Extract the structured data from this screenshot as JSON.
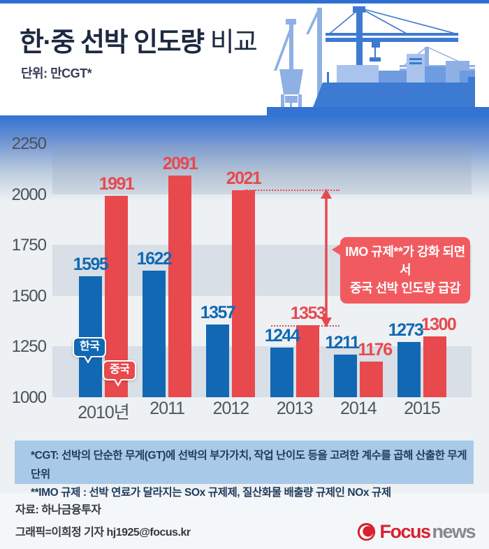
{
  "header": {
    "title_main": "한·중 선박 인도량",
    "title_sub": "비교",
    "unit": "단위: 만CGT*"
  },
  "chart_data": {
    "type": "bar",
    "title": "한·중 선박 인도량 비교",
    "unit_label": "만CGT",
    "categories": [
      "2010년",
      "2011",
      "2012",
      "2013",
      "2014",
      "2015"
    ],
    "series": [
      {
        "name": "한국",
        "color": "#1268b3",
        "values": [
          1595,
          1622,
          1357,
          1244,
          1211,
          1273
        ]
      },
      {
        "name": "중국",
        "color": "#e8494d",
        "values": [
          1991,
          2091,
          2021,
          1353,
          1176,
          1300
        ]
      }
    ],
    "ylim": [
      1000,
      2250
    ],
    "yticks": [
      2250,
      2000,
      1750,
      1500,
      1250,
      1000
    ],
    "grid": "alternating-horizontal-bands",
    "legend_position": "speech-bubbles-on-2010-bars",
    "annotation": {
      "line1": "IMO 규제**가 강화 되면서",
      "line2": "중국 선박 인도량 급감",
      "arrow_from_value": 2021,
      "arrow_to_value": 1353,
      "color": "#f15b5f"
    }
  },
  "footnotes": {
    "line1": "*CGT: 선박의 단순한 무게(GT)에 선박의 부가가치, 작업 난이도 등을 고려한 계수를 곱해 산출한 무게 단위",
    "line2": "**IMO 규제 : 선박 연료가 달라지는 SOx 규제제, 질산화물 배출량 규제인 NOx 규제"
  },
  "footer": {
    "source": "자료: 하나금융투자",
    "credit": "그래픽=이희정 기자 hj1925@focus.kr",
    "logo_focus": "Focus",
    "logo_news": "news",
    "logo_red": "#d7212f",
    "logo_gray": "#85898e"
  }
}
